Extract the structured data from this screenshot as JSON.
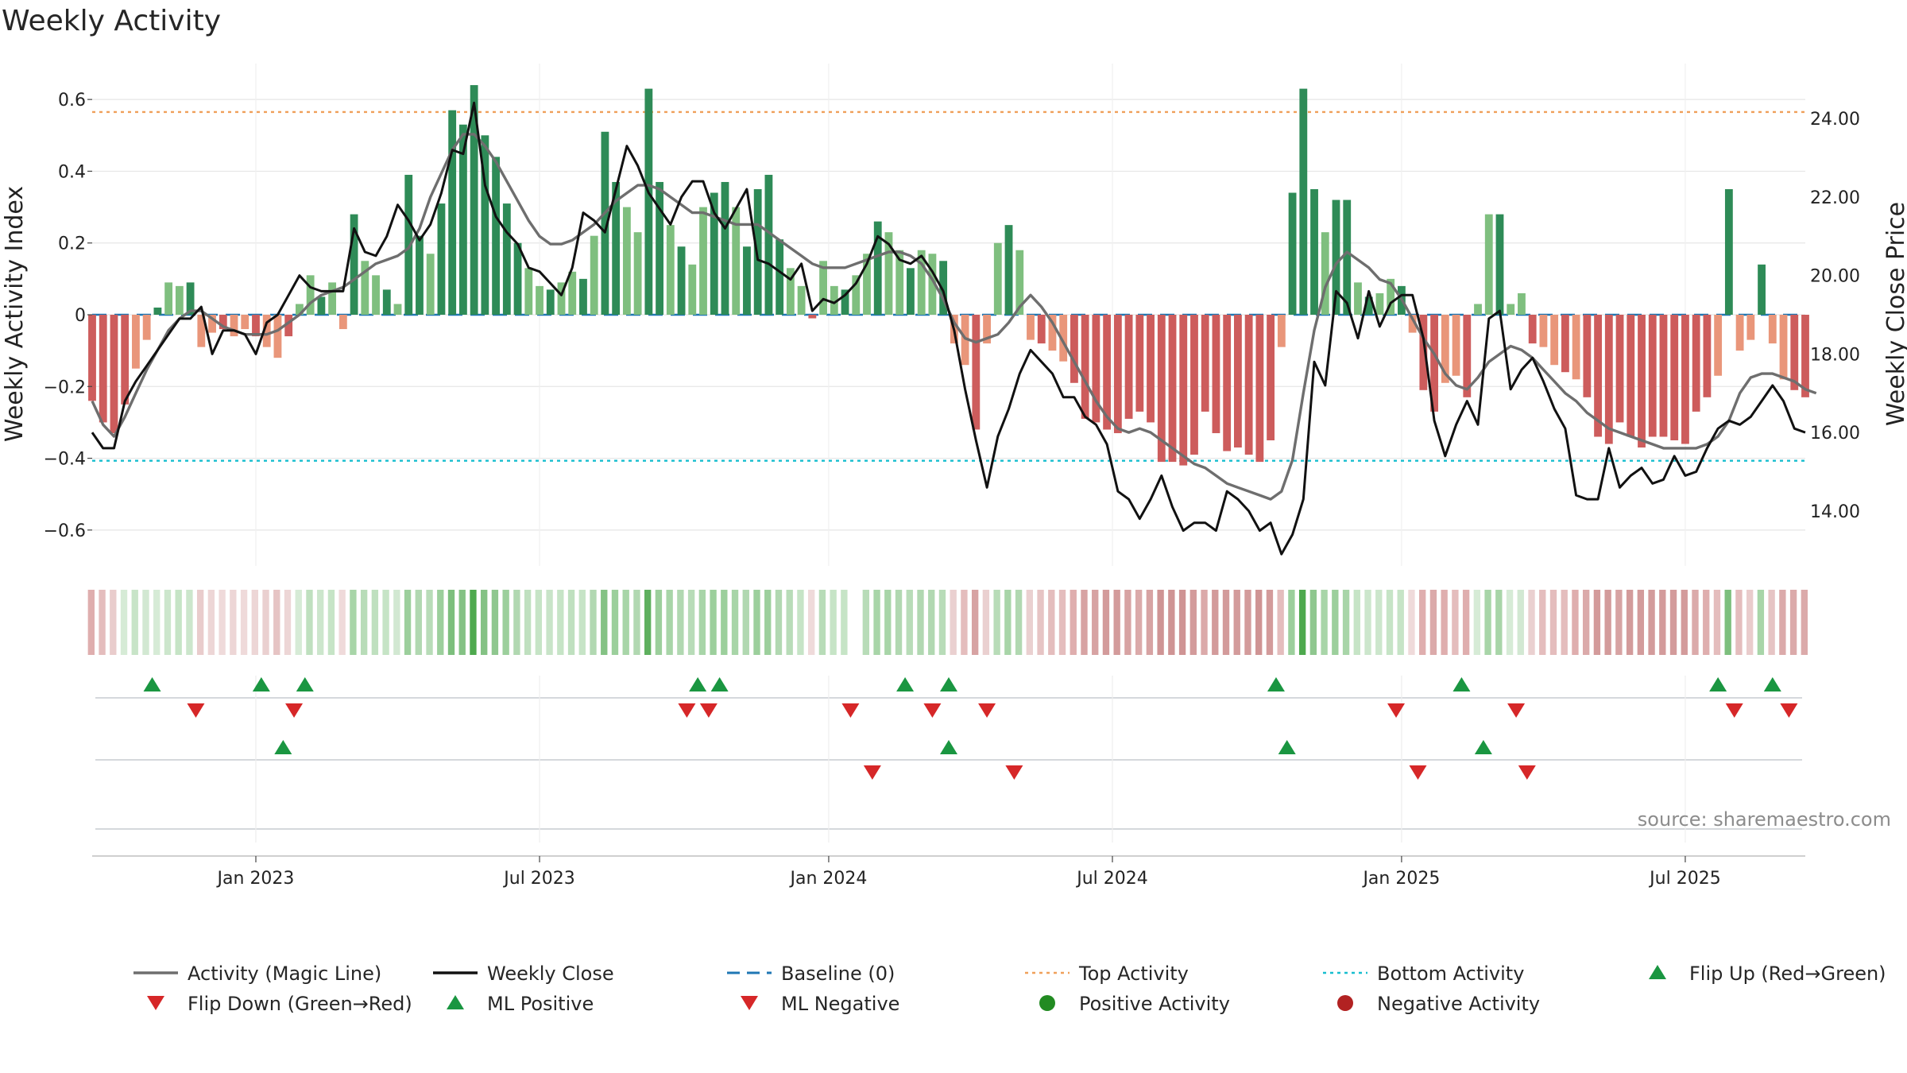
{
  "chart_data": {
    "type": "bar",
    "title": "Weekly Activity",
    "ylabel": "Weekly Activity Index",
    "y2label": "Weekly Close Price",
    "source": "source: sharemaestro.com",
    "ylim": [
      -0.7,
      0.7
    ],
    "y2lim": [
      12.6,
      25.4
    ],
    "yticks": [
      -0.6,
      -0.4,
      -0.2,
      0,
      0.2,
      0.4,
      0.6
    ],
    "yticklabels": [
      "−0.6",
      "−0.4",
      "−0.2",
      "0",
      "0.2",
      "0.4",
      "0.6"
    ],
    "y2ticks": [
      14,
      16,
      18,
      20,
      22,
      24
    ],
    "y2ticklabels": [
      "14.00",
      "16.00",
      "18.00",
      "20.00",
      "22.00",
      "24.00"
    ],
    "xticks": [
      {
        "week": 30,
        "label": "Jan 2023"
      },
      {
        "week": 82,
        "label": "Jul 2023"
      },
      {
        "week": 135,
        "label": "Jan 2024"
      },
      {
        "week": 187,
        "label": "Jul 2024"
      },
      {
        "week": 240,
        "label": "Jan 2025"
      },
      {
        "week": 292,
        "label": "Jul 2025"
      }
    ],
    "top_activity": 0.565,
    "bottom_activity": -0.407,
    "weeks": 315,
    "activity": [
      -0.24,
      -0.3,
      -0.33,
      -0.25,
      -0.15,
      -0.07,
      0.02,
      0.09,
      0.08,
      0.09,
      -0.09,
      -0.05,
      -0.04,
      -0.06,
      -0.04,
      -0.06,
      -0.09,
      -0.12,
      -0.06,
      0.03,
      0.11,
      0.05,
      0.09,
      -0.04,
      0.28,
      0.15,
      0.11,
      0.07,
      0.03,
      0.39,
      0.22,
      0.17,
      0.31,
      0.57,
      0.53,
      0.64,
      0.5,
      0.44,
      0.31,
      0.2,
      0.13,
      0.08,
      0.07,
      0.09,
      0.12,
      0.1,
      0.22,
      0.51,
      0.37,
      0.3,
      0.23,
      0.63,
      0.37,
      0.25,
      0.19,
      0.14,
      0.3,
      0.34,
      0.37,
      0.3,
      0.19,
      0.35,
      0.39,
      0.21,
      0.13,
      0.08,
      -0.01,
      0.15,
      0.08,
      0.07,
      0.11,
      0.17,
      0.26,
      0.23,
      0.18,
      0.13,
      0.18,
      0.17,
      0.15,
      -0.08,
      -0.14,
      -0.32,
      -0.08,
      0.2,
      0.25,
      0.18,
      -0.07,
      -0.08,
      -0.1,
      -0.13,
      -0.19,
      -0.29,
      -0.3,
      -0.32,
      -0.33,
      -0.29,
      -0.27,
      -0.3,
      -0.41,
      -0.41,
      -0.42,
      -0.39,
      -0.27,
      -0.33,
      -0.38,
      -0.37,
      -0.39,
      -0.41,
      -0.35,
      -0.09,
      0.34,
      0.63,
      0.35,
      0.23,
      0.32,
      0.32,
      0.09,
      0.05,
      0.06,
      0.1,
      0.08,
      -0.05,
      -0.21,
      -0.27,
      -0.19,
      -0.17,
      -0.23,
      0.03,
      0.28,
      0.28,
      0.03,
      0.06,
      -0.08,
      -0.09,
      -0.14,
      -0.16,
      -0.18,
      -0.23,
      -0.34,
      -0.36,
      -0.3,
      -0.34,
      -0.37,
      -0.34,
      -0.34,
      -0.35,
      -0.36,
      -0.27,
      -0.23,
      -0.17,
      0.35,
      -0.1,
      -0.07,
      0.14,
      -0.08,
      -0.18,
      -0.21,
      -0.23
    ],
    "magic_line": [
      16.8,
      16.2,
      15.9,
      16.4,
      17,
      17.6,
      18.1,
      18.6,
      18.9,
      19.1,
      19.1,
      18.9,
      18.7,
      18.6,
      18.5,
      18.5,
      18.5,
      18.6,
      18.8,
      19,
      19.3,
      19.5,
      19.6,
      19.7,
      19.9,
      20.1,
      20.3,
      20.4,
      20.5,
      20.7,
      21.2,
      22,
      22.6,
      23.2,
      23.6,
      23.6,
      23.3,
      22.9,
      22.4,
      21.9,
      21.4,
      21,
      20.8,
      20.8,
      20.9,
      21.1,
      21.3,
      21.6,
      21.9,
      22.1,
      22.3,
      22.3,
      22.2,
      22,
      21.8,
      21.6,
      21.6,
      21.5,
      21.4,
      21.3,
      21.3,
      21.3,
      21.1,
      20.9,
      20.7,
      20.5,
      20.3,
      20.2,
      20.2,
      20.2,
      20.3,
      20.4,
      20.5,
      20.6,
      20.6,
      20.5,
      20.3,
      19.9,
      19.4,
      18.8,
      18.4,
      18.3,
      18.4,
      18.5,
      18.8,
      19.2,
      19.5,
      19.2,
      18.8,
      18.3,
      17.8,
      17.3,
      16.8,
      16.4,
      16.1,
      16,
      16.1,
      16,
      15.8,
      15.6,
      15.4,
      15.2,
      15.1,
      14.9,
      14.7,
      14.6,
      14.5,
      14.4,
      14.3,
      14.5,
      15.3,
      17,
      18.6,
      19.7,
      20.3,
      20.6,
      20.4,
      20.2,
      19.9,
      19.8,
      19.4,
      18.9,
      18.4,
      18,
      17.5,
      17.2,
      17.1,
      17.4,
      17.8,
      18,
      18.2,
      18.1,
      17.9,
      17.6,
      17.3,
      17,
      16.8,
      16.5,
      16.3,
      16.1,
      16,
      15.9,
      15.8,
      15.7,
      15.6,
      15.6,
      15.6,
      15.6,
      15.7,
      15.9,
      16.3,
      17,
      17.4,
      17.5,
      17.5,
      17.4,
      17.3,
      17.1,
      17
    ],
    "weekly_close": [
      16,
      15.6,
      15.6,
      16.8,
      17.3,
      17.7,
      18.1,
      18.5,
      18.9,
      18.9,
      19.2,
      18,
      18.6,
      18.6,
      18.5,
      18,
      18.8,
      19,
      19.5,
      20,
      19.7,
      19.6,
      19.6,
      19.6,
      21.2,
      20.6,
      20.5,
      21,
      21.8,
      21.4,
      20.9,
      21.3,
      22.1,
      23.2,
      23.1,
      24.4,
      22.3,
      21.5,
      21.1,
      20.8,
      20.2,
      20.1,
      19.8,
      19.5,
      20.2,
      21.6,
      21.4,
      21.1,
      22.2,
      23.3,
      22.8,
      22.1,
      21.7,
      21.3,
      22,
      22.4,
      22.4,
      21.6,
      21.2,
      21.7,
      22.2,
      20.4,
      20.3,
      20.1,
      19.9,
      20.3,
      19.1,
      19.4,
      19.3,
      19.5,
      19.8,
      20.3,
      21,
      20.8,
      20.4,
      20.3,
      20.5,
      20.1,
      19.6,
      18.6,
      17.1,
      15.8,
      14.6,
      15.9,
      16.6,
      17.5,
      18.1,
      17.8,
      17.5,
      16.9,
      16.9,
      16.4,
      16.2,
      15.7,
      14.5,
      14.3,
      13.8,
      14.3,
      14.9,
      14.1,
      13.5,
      13.7,
      13.7,
      13.5,
      14.5,
      14.3,
      14,
      13.5,
      13.7,
      12.9,
      13.4,
      14.3,
      17.8,
      17.2,
      19.6,
      19.3,
      18.4,
      19.6,
      18.7,
      19.3,
      19.5,
      19.5,
      18.4,
      16.3,
      15.4,
      16.2,
      16.8,
      16.2,
      18.9,
      19.1,
      17.1,
      17.6,
      17.9,
      17.3,
      16.6,
      16.1,
      14.4,
      14.3,
      14.3,
      15.6,
      14.6,
      14.9,
      15.1,
      14.7,
      14.8,
      15.4,
      14.9,
      15,
      15.6,
      16.1,
      16.3,
      16.2,
      16.4,
      16.8,
      17.2,
      16.8,
      16.1,
      16
    ],
    "consensus_colors": [
      "#dfaeae",
      "#e4bdbd",
      "#e9cccc",
      "#d6ebd6",
      "#c8e4c8",
      "#d2e8d2",
      "#d6ebd6",
      "#cce6cc",
      "#c6e4c6",
      "#cce6cc",
      "#e9cccc",
      "#edd6d6",
      "#efdada",
      "#edd6d6",
      "#efdada",
      "#edd6d6",
      "#ead0d0",
      "#e6c4c4",
      "#edd6d6",
      "#d6ebd6",
      "#bfe0bf",
      "#cce6cc",
      "#c6e4c6",
      "#efdada",
      "#a8d5a8",
      "#b8dcb8",
      "#bfe0bf",
      "#c6e4c6",
      "#d2e8d2",
      "#9ccf9c",
      "#b1d8b1",
      "#b8dcb8",
      "#9ccf9c",
      "#7dbf7d",
      "#84c284",
      "#4ea94e",
      "#84c284",
      "#8fc78f",
      "#9ccf9c",
      "#b1d8b1",
      "#bfe0bf",
      "#c6e4c6",
      "#c8e4c8",
      "#c6e4c6",
      "#bfe0bf",
      "#c6e4c6",
      "#b1d8b1",
      "#84c284",
      "#9ccf9c",
      "#a8d5a8",
      "#b1d8b1",
      "#5eb05e",
      "#9ccf9c",
      "#a8d5a8",
      "#b1d8b1",
      "#b8dcb8",
      "#a8d5a8",
      "#9ccf9c",
      "#9ccf9c",
      "#a8d5a8",
      "#b1d8b1",
      "#9ccf9c",
      "#9ccf9c",
      "#b1d8b1",
      "#b8dcb8",
      "#c6e4c6",
      "#efdada",
      "#b8dcb8",
      "#c6e4c6",
      "#c6e4c6",
      "#bfe0bf",
      "#b8dcb8",
      "#a8d5a8",
      "#a8d5a8",
      "#b1d8b1",
      "#b8dcb8",
      "#b1d8b1",
      "#b1d8b1",
      "#b8dcb8",
      "#ead0d0",
      "#e4bdbd",
      "#d7a3a3",
      "#ead0d0",
      "#b8dcb8",
      "#a8d5a8",
      "#b1d8b1",
      "#ead0d0",
      "#e6c4c4",
      "#e4bdbd",
      "#e4bdbd",
      "#dfaeae",
      "#d7a3a3",
      "#d7a3a3",
      "#d39b9b",
      "#d39b9b",
      "#d7a3a3",
      "#dbaaaa",
      "#d7a3a3",
      "#cf9494",
      "#cf9494",
      "#cf9494",
      "#d39b9b",
      "#dbaaaa",
      "#d39b9b",
      "#d39b9b",
      "#d39b9b",
      "#d39b9b",
      "#cf9494",
      "#d39b9b",
      "#e4bdbd",
      "#9ccf9c",
      "#4ea94e",
      "#8fc78f",
      "#a8d5a8",
      "#9ccf9c",
      "#a8d5a8",
      "#c6e4c6",
      "#cce6cc",
      "#cce6cc",
      "#c6e4c6",
      "#c6e4c6",
      "#efdada",
      "#dfaeae",
      "#dbaaaa",
      "#dfaeae",
      "#e4bdbd",
      "#dfaeae",
      "#d6ebd6",
      "#a8d5a8",
      "#a8d5a8",
      "#d6ebd6",
      "#d2e8d2",
      "#ead0d0",
      "#e4bdbd",
      "#e4bdbd",
      "#e4bdbd",
      "#dfaeae",
      "#dbaaaa",
      "#d39b9b",
      "#d39b9b",
      "#d7a3a3",
      "#d39b9b",
      "#d39b9b",
      "#d39b9b",
      "#d39b9b",
      "#d39b9b",
      "#d39b9b",
      "#dbaaaa",
      "#dfaeae",
      "#e4bdbd",
      "#7dbf7d",
      "#e4bdbd",
      "#e9cccc",
      "#a8d5a8",
      "#e6c4c4",
      "#dbaaaa",
      "#dbaaaa",
      "#dbaaaa"
    ],
    "series": [
      {
        "name": "Activity (Magic Line)",
        "color": "#6e6e6e"
      },
      {
        "name": "Weekly Close",
        "color": "#111111"
      },
      {
        "name": "Baseline (0)",
        "color": "#1f77b4"
      },
      {
        "name": "Top Activity",
        "color": "#f0a05a"
      },
      {
        "name": "Bottom Activity",
        "color": "#17becf"
      },
      {
        "name": "Flip Up (Red→Green)",
        "color": "#1a9641"
      },
      {
        "name": "Flip Down (Green→Red)",
        "color": "#d62728"
      },
      {
        "name": "ML Positive",
        "color": "#1a9641"
      },
      {
        "name": "ML Negative",
        "color": "#d62728"
      },
      {
        "name": "Positive Activity",
        "color": "#228b22"
      },
      {
        "name": "Negative Activity",
        "color": "#b22222"
      }
    ],
    "flip_up_weeks": [
      11,
      31,
      39,
      111,
      115,
      149,
      157,
      217,
      251,
      298,
      308
    ],
    "flip_down_weeks": [
      19,
      37,
      109,
      113,
      139,
      154,
      164,
      239,
      261,
      301,
      311
    ],
    "ml_positive_weeks": [
      35,
      157,
      219,
      255
    ],
    "ml_negative_weeks": [
      143,
      169,
      243,
      263
    ],
    "colors": {
      "bar_green_strong": "#2e8b57",
      "bar_green_light": "#7fbf7f",
      "bar_red_strong": "#cd5c5c",
      "bar_red_light": "#e9967a",
      "grid": "#e6e6e6"
    }
  }
}
